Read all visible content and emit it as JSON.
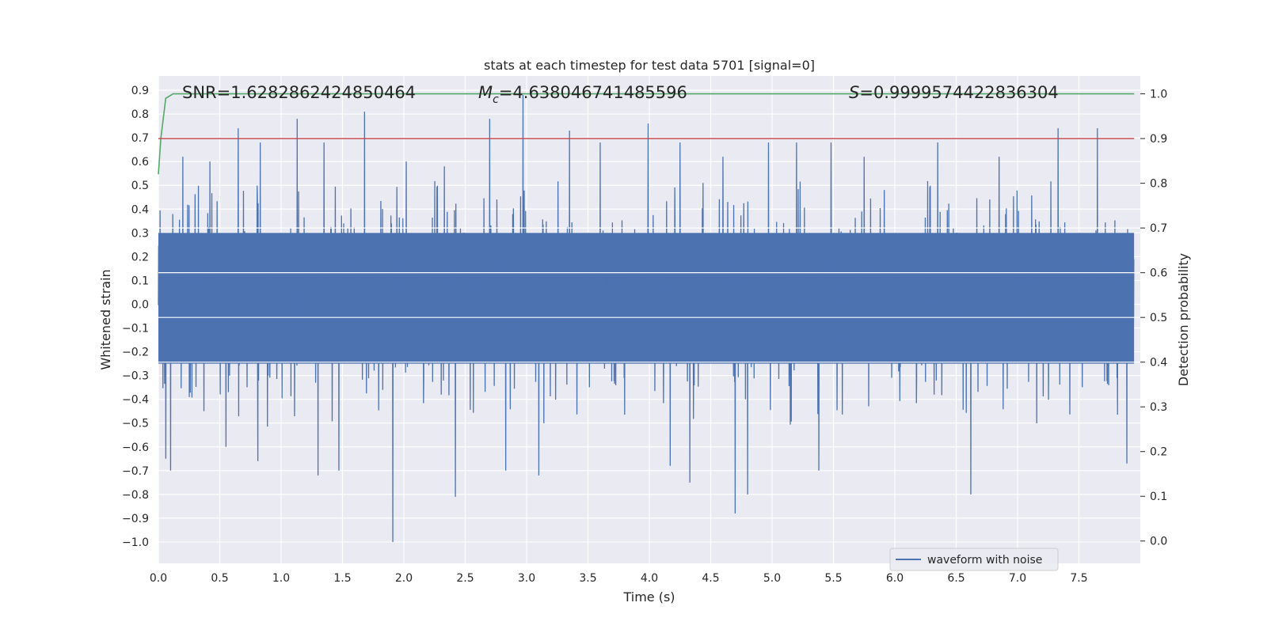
{
  "chart_data": {
    "type": "line",
    "title": "stats at each timestep for test data 5701 [signal=0]",
    "xlabel": "Time (s)",
    "ylabel": "Whitened strain",
    "ylabel_right": "Detection probability",
    "xlim": [
      0.0,
      8.0
    ],
    "ylim": [
      -1.09,
      0.96
    ],
    "ylim_right": [
      -0.05,
      1.04
    ],
    "x_ticks": [
      0.0,
      0.5,
      1.0,
      1.5,
      2.0,
      2.5,
      3.0,
      3.5,
      4.0,
      4.5,
      5.0,
      5.5,
      6.0,
      6.5,
      7.0,
      7.5
    ],
    "x_tick_labels": [
      "0.0",
      "0.5",
      "1.0",
      "1.5",
      "2.0",
      "2.5",
      "3.0",
      "3.5",
      "4.0",
      "4.5",
      "5.0",
      "5.5",
      "6.0",
      "6.5",
      "7.0",
      "7.5"
    ],
    "y_ticks": [
      0.9,
      0.8,
      0.7,
      0.6,
      0.5,
      0.4,
      0.3,
      0.2,
      0.1,
      0.0,
      -0.1,
      -0.2,
      -0.3,
      -0.4,
      -0.5,
      -0.6,
      -0.7,
      -0.8,
      -0.9,
      -1.0
    ],
    "y_tick_labels": [
      "0.9",
      "0.8",
      "0.7",
      "0.6",
      "0.5",
      "0.4",
      "0.3",
      "0.2",
      "0.1",
      "0.0",
      "−0.1",
      "−0.2",
      "−0.3",
      "−0.4",
      "−0.5",
      "−0.6",
      "−0.7",
      "−0.8",
      "−0.9",
      "−1.0"
    ],
    "y_ticks_right": [
      1.0,
      0.9,
      0.8,
      0.7,
      0.6,
      0.5,
      0.4,
      0.3,
      0.2,
      0.1,
      0.0
    ],
    "y_tick_labels_right": [
      "1.0",
      "0.9",
      "0.8",
      "0.7",
      "0.6",
      "0.5",
      "0.4",
      "0.3",
      "0.2",
      "0.1",
      "0.0"
    ],
    "grid": true,
    "legend": {
      "placement": "lower-right",
      "entries": [
        "waveform with noise"
      ]
    },
    "annotations": {
      "snr": "SNR=1.6282862424850464",
      "mc_symbol": "M",
      "mc_subscript": "c",
      "mc_value": "=4.638046741485596",
      "s_symbol": "S",
      "s_value": "=0.9999574422836304"
    },
    "series": [
      {
        "name": "waveform with noise",
        "axis": "left",
        "color": "#4c72b0",
        "kind": "noise-trace",
        "samples_per_second": 512,
        "core_band": [
          -0.25,
          0.3
        ],
        "peaks": [
          {
            "x": 0.2,
            "y": 0.62
          },
          {
            "x": 0.42,
            "y": 0.6
          },
          {
            "x": 0.65,
            "y": 0.74
          },
          {
            "x": 0.83,
            "y": 0.68
          },
          {
            "x": 1.13,
            "y": 0.78
          },
          {
            "x": 1.35,
            "y": 0.68
          },
          {
            "x": 1.68,
            "y": 0.81
          },
          {
            "x": 2.02,
            "y": 0.6
          },
          {
            "x": 2.33,
            "y": 0.58
          },
          {
            "x": 2.7,
            "y": 0.78
          },
          {
            "x": 2.97,
            "y": 0.88
          },
          {
            "x": 3.35,
            "y": 0.73
          },
          {
            "x": 3.6,
            "y": 0.68
          },
          {
            "x": 3.99,
            "y": 0.76
          },
          {
            "x": 4.25,
            "y": 0.68
          },
          {
            "x": 4.6,
            "y": 0.62
          },
          {
            "x": 4.97,
            "y": 0.68
          },
          {
            "x": 5.2,
            "y": 0.68
          },
          {
            "x": 5.48,
            "y": 0.68
          },
          {
            "x": 5.75,
            "y": 0.62
          },
          {
            "x": 6.35,
            "y": 0.68
          },
          {
            "x": 6.85,
            "y": 0.62
          },
          {
            "x": 7.33,
            "y": 0.74
          },
          {
            "x": 7.65,
            "y": 0.74
          }
        ],
        "troughs": [
          {
            "x": 0.06,
            "y": -0.65
          },
          {
            "x": 0.1,
            "y": -0.7
          },
          {
            "x": 0.55,
            "y": -0.6
          },
          {
            "x": 0.81,
            "y": -0.66
          },
          {
            "x": 1.3,
            "y": -0.72
          },
          {
            "x": 1.47,
            "y": -0.7
          },
          {
            "x": 1.91,
            "y": -1.0
          },
          {
            "x": 2.42,
            "y": -0.81
          },
          {
            "x": 2.83,
            "y": -0.7
          },
          {
            "x": 3.1,
            "y": -0.72
          },
          {
            "x": 4.17,
            "y": -0.68
          },
          {
            "x": 4.33,
            "y": -0.75
          },
          {
            "x": 4.7,
            "y": -0.88
          },
          {
            "x": 4.8,
            "y": -0.8
          },
          {
            "x": 5.38,
            "y": -0.7
          },
          {
            "x": 6.62,
            "y": -0.8
          },
          {
            "x": 7.89,
            "y": -0.67
          }
        ]
      },
      {
        "name": "",
        "axis": "right",
        "color": "#55a868",
        "x": [
          0.0,
          0.02,
          0.06,
          0.12,
          7.95
        ],
        "y": [
          0.82,
          0.9,
          0.99,
          1.0,
          1.0
        ]
      },
      {
        "name": "",
        "axis": "right",
        "color": "#c44e52",
        "x": [
          0.0,
          7.95
        ],
        "y": [
          0.9,
          0.9
        ]
      }
    ]
  }
}
